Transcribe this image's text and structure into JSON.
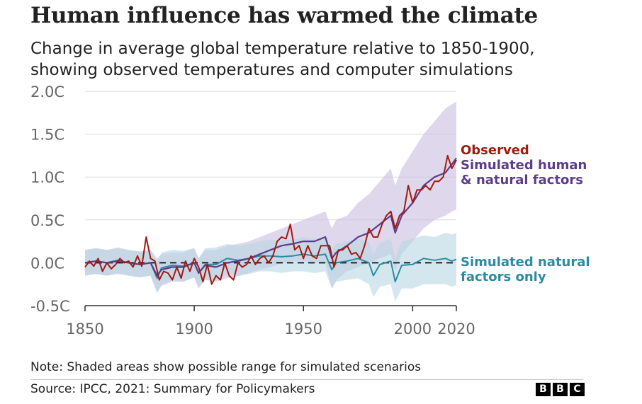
{
  "header": {
    "title": "Human influence has warmed the climate",
    "subtitle_line1": "Change in average global temperature relative to 1850-1900,",
    "subtitle_line2": "showing observed temperatures and computer simulations"
  },
  "footer": {
    "note": "Note: Shaded areas show possible range for simulated scenarios",
    "source": "Source: IPCC, 2021: Summary for Policymakers",
    "logo_letters": [
      "B",
      "B",
      "C"
    ]
  },
  "colors": {
    "observed": "#a01a10",
    "human": "#5e3c8c",
    "human_band": "#c9bde0",
    "natural": "#2c8ba3",
    "natural_band": "#b7d7e2",
    "grid": "#d9d9d9",
    "baseline": "#222222",
    "axis_text": "#666666"
  },
  "chart_data": {
    "type": "line",
    "title": "Human influence has warmed the climate",
    "xlim": [
      1850,
      2020
    ],
    "ylim": [
      -0.5,
      2.0
    ],
    "y_ticks": [
      2.0,
      1.5,
      1.0,
      0.5,
      0.0,
      -0.5
    ],
    "y_tick_labels": [
      "2.0C",
      "1.5C",
      "1.0C",
      "0.5C",
      "0.0C",
      "-0.5C"
    ],
    "x_ticks": [
      1850,
      1900,
      1950,
      2000,
      2020
    ],
    "x_tick_labels": [
      "1850",
      "1900",
      "1950",
      "2000",
      "2020"
    ],
    "grid": true,
    "baseline": 0,
    "series": [
      {
        "name": "Observed",
        "key": "observed",
        "x": [
          1850,
          1852,
          1854,
          1856,
          1858,
          1860,
          1862,
          1864,
          1866,
          1868,
          1870,
          1872,
          1874,
          1876,
          1878,
          1880,
          1882,
          1884,
          1886,
          1888,
          1890,
          1892,
          1894,
          1896,
          1898,
          1900,
          1902,
          1904,
          1906,
          1908,
          1910,
          1912,
          1914,
          1916,
          1918,
          1920,
          1922,
          1924,
          1926,
          1928,
          1930,
          1932,
          1934,
          1936,
          1938,
          1940,
          1942,
          1944,
          1946,
          1948,
          1950,
          1952,
          1954,
          1956,
          1958,
          1960,
          1962,
          1964,
          1966,
          1968,
          1970,
          1972,
          1974,
          1976,
          1978,
          1980,
          1982,
          1984,
          1986,
          1988,
          1990,
          1992,
          1994,
          1996,
          1998,
          2000,
          2002,
          2004,
          2006,
          2008,
          2010,
          2012,
          2014,
          2016,
          2018,
          2020
        ],
        "values": [
          -0.05,
          0.02,
          -0.04,
          0.05,
          -0.1,
          0.0,
          -0.07,
          -0.02,
          0.05,
          0.0,
          0.02,
          -0.05,
          0.08,
          -0.04,
          0.3,
          0.05,
          0.02,
          -0.2,
          -0.1,
          -0.12,
          -0.2,
          -0.05,
          -0.18,
          0.02,
          -0.1,
          0.05,
          -0.05,
          -0.22,
          -0.02,
          -0.25,
          -0.15,
          -0.2,
          0.0,
          -0.15,
          -0.2,
          0.0,
          -0.05,
          -0.02,
          0.08,
          -0.02,
          0.05,
          0.08,
          0.0,
          0.08,
          0.25,
          0.3,
          0.28,
          0.45,
          0.15,
          0.2,
          0.05,
          0.2,
          0.08,
          0.05,
          0.2,
          0.2,
          0.2,
          -0.05,
          0.15,
          0.15,
          0.2,
          0.1,
          0.12,
          0.05,
          0.2,
          0.4,
          0.3,
          0.3,
          0.45,
          0.55,
          0.6,
          0.4,
          0.55,
          0.6,
          0.9,
          0.7,
          0.85,
          0.85,
          0.9,
          0.85,
          0.95,
          0.95,
          1.0,
          1.25,
          1.1,
          1.2
        ]
      },
      {
        "name": "Simulated human & natural factors",
        "key": "human",
        "x": [
          1850,
          1855,
          1860,
          1865,
          1870,
          1875,
          1880,
          1883,
          1885,
          1890,
          1895,
          1900,
          1902,
          1905,
          1910,
          1915,
          1920,
          1925,
          1930,
          1935,
          1940,
          1945,
          1950,
          1955,
          1960,
          1963,
          1965,
          1970,
          1975,
          1980,
          1985,
          1990,
          1992,
          1995,
          2000,
          2005,
          2010,
          2015,
          2018,
          2020
        ],
        "values": [
          0.0,
          0.02,
          0.0,
          0.02,
          0.0,
          -0.02,
          0.0,
          -0.15,
          -0.08,
          -0.05,
          -0.05,
          0.0,
          -0.12,
          -0.03,
          -0.05,
          0.0,
          0.02,
          0.05,
          0.1,
          0.15,
          0.2,
          0.22,
          0.25,
          0.25,
          0.3,
          0.05,
          0.12,
          0.2,
          0.3,
          0.35,
          0.45,
          0.55,
          0.35,
          0.55,
          0.7,
          0.9,
          1.0,
          1.05,
          1.15,
          1.22
        ],
        "band_upper": [
          0.15,
          0.17,
          0.15,
          0.17,
          0.15,
          0.13,
          0.15,
          0.05,
          0.1,
          0.12,
          0.12,
          0.17,
          0.05,
          0.15,
          0.15,
          0.2,
          0.22,
          0.25,
          0.3,
          0.35,
          0.4,
          0.45,
          0.5,
          0.55,
          0.6,
          0.4,
          0.5,
          0.55,
          0.7,
          0.8,
          0.95,
          1.1,
          0.9,
          1.1,
          1.3,
          1.5,
          1.65,
          1.8,
          1.85,
          1.88
        ],
        "band_lower": [
          -0.15,
          -0.13,
          -0.15,
          -0.13,
          -0.15,
          -0.17,
          -0.15,
          -0.35,
          -0.27,
          -0.22,
          -0.22,
          -0.17,
          -0.3,
          -0.2,
          -0.22,
          -0.18,
          -0.16,
          -0.12,
          -0.08,
          -0.05,
          0.0,
          0.02,
          0.02,
          0.0,
          0.0,
          -0.3,
          -0.2,
          -0.1,
          -0.05,
          0.0,
          0.05,
          0.1,
          -0.1,
          0.1,
          0.25,
          0.4,
          0.5,
          0.55,
          0.6,
          0.62
        ]
      },
      {
        "name": "Simulated natural factors only",
        "key": "natural",
        "x": [
          1850,
          1855,
          1860,
          1865,
          1870,
          1875,
          1880,
          1883,
          1885,
          1890,
          1895,
          1900,
          1902,
          1905,
          1910,
          1915,
          1920,
          1925,
          1930,
          1935,
          1940,
          1945,
          1950,
          1955,
          1960,
          1963,
          1965,
          1970,
          1975,
          1980,
          1982,
          1985,
          1990,
          1992,
          1995,
          2000,
          2005,
          2010,
          2015,
          2018,
          2020
        ],
        "values": [
          0.0,
          0.02,
          0.0,
          0.03,
          0.0,
          -0.02,
          0.0,
          -0.18,
          -0.06,
          -0.03,
          -0.04,
          0.0,
          -0.12,
          -0.02,
          -0.02,
          0.05,
          0.03,
          0.05,
          0.08,
          0.08,
          0.07,
          0.08,
          0.1,
          0.08,
          0.1,
          -0.08,
          0.0,
          0.02,
          0.05,
          0.0,
          -0.15,
          -0.02,
          0.02,
          -0.22,
          -0.03,
          -0.02,
          0.05,
          0.03,
          0.05,
          0.02,
          0.04
        ],
        "band_upper": [
          0.15,
          0.17,
          0.15,
          0.18,
          0.15,
          0.13,
          0.15,
          0.0,
          0.12,
          0.15,
          0.14,
          0.17,
          0.05,
          0.17,
          0.18,
          0.22,
          0.2,
          0.22,
          0.25,
          0.27,
          0.26,
          0.27,
          0.3,
          0.28,
          0.3,
          0.15,
          0.22,
          0.25,
          0.28,
          0.25,
          0.1,
          0.23,
          0.28,
          0.05,
          0.25,
          0.28,
          0.32,
          0.3,
          0.35,
          0.33,
          0.35
        ],
        "band_lower": [
          -0.15,
          -0.13,
          -0.15,
          -0.12,
          -0.15,
          -0.17,
          -0.15,
          -0.35,
          -0.25,
          -0.2,
          -0.22,
          -0.17,
          -0.28,
          -0.2,
          -0.2,
          -0.13,
          -0.15,
          -0.13,
          -0.1,
          -0.1,
          -0.12,
          -0.1,
          -0.1,
          -0.12,
          -0.1,
          -0.3,
          -0.22,
          -0.2,
          -0.18,
          -0.25,
          -0.4,
          -0.28,
          -0.25,
          -0.45,
          -0.3,
          -0.3,
          -0.25,
          -0.25,
          -0.25,
          -0.28,
          -0.26
        ]
      }
    ],
    "labels": {
      "observed": [
        "Observed"
      ],
      "human": [
        "Simulated human",
        "& natural factors"
      ],
      "natural": [
        "Simulated natural",
        "factors only"
      ]
    }
  }
}
